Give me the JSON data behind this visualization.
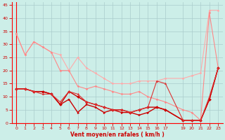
{
  "xlabel": "Vent moyen/en rafales ( km/h )",
  "background_color": "#cceee8",
  "grid_color": "#aacccc",
  "xlim": [
    -0.5,
    23.5
  ],
  "ylim": [
    0,
    46
  ],
  "yticks": [
    0,
    5,
    10,
    15,
    20,
    25,
    30,
    35,
    40,
    45
  ],
  "xticks": [
    0,
    1,
    2,
    3,
    4,
    5,
    6,
    7,
    8,
    9,
    10,
    11,
    12,
    13,
    14,
    15,
    16,
    17,
    19,
    20,
    21,
    22,
    23
  ],
  "series": [
    {
      "x": [
        0,
        1,
        2,
        3,
        4,
        5,
        6,
        7,
        8,
        9,
        10,
        11,
        12,
        13,
        14,
        15,
        16,
        17,
        19,
        20,
        21,
        22,
        23
      ],
      "y": [
        34,
        26,
        31,
        29,
        27,
        26,
        20,
        25,
        21,
        19,
        17,
        15,
        15,
        15,
        16,
        16,
        16,
        17,
        17,
        18,
        19,
        43,
        43
      ],
      "color": "#ffaaaa",
      "lw": 0.8,
      "marker": "D",
      "ms": 1.5
    },
    {
      "x": [
        0,
        1,
        2,
        3,
        4,
        5,
        6,
        7,
        8,
        9,
        10,
        11,
        12,
        13,
        14,
        15,
        16,
        17,
        19,
        20,
        21,
        22,
        23
      ],
      "y": [
        34,
        26,
        31,
        29,
        27,
        20,
        20,
        14,
        13,
        14,
        13,
        12,
        11,
        11,
        12,
        10,
        9,
        8,
        5,
        4,
        1,
        42,
        21
      ],
      "color": "#ff8888",
      "lw": 0.8,
      "marker": "D",
      "ms": 1.5
    },
    {
      "x": [
        0,
        1,
        2,
        3,
        4,
        5,
        6,
        7,
        8,
        9,
        10,
        11,
        12,
        13,
        14,
        15,
        16,
        17,
        19,
        20,
        21,
        22,
        23
      ],
      "y": [
        13,
        13,
        12,
        12,
        11,
        7,
        12,
        10,
        8,
        7,
        6,
        5,
        5,
        4,
        5,
        6,
        6,
        5,
        1,
        1,
        1,
        9,
        21
      ],
      "color": "#cc0000",
      "lw": 1.0,
      "marker": "D",
      "ms": 2.0
    },
    {
      "x": [
        0,
        1,
        2,
        3,
        4,
        5,
        6,
        7,
        8,
        9,
        10,
        11,
        12,
        13,
        14,
        15,
        16,
        17,
        19,
        20,
        21,
        22,
        23
      ],
      "y": [
        13,
        13,
        12,
        12,
        11,
        7,
        9,
        4,
        7,
        6,
        4,
        5,
        4,
        4,
        3,
        4,
        6,
        5,
        1,
        1,
        1,
        9,
        21
      ],
      "color": "#cc0000",
      "lw": 1.0,
      "marker": ">",
      "ms": 2.0
    },
    {
      "x": [
        0,
        1,
        2,
        3,
        4,
        5,
        6,
        7,
        8,
        9,
        10,
        11,
        12,
        13,
        14,
        15,
        16,
        17,
        19,
        20,
        21,
        22,
        23
      ],
      "y": [
        13,
        13,
        12,
        11,
        11,
        8,
        12,
        11,
        8,
        7,
        6,
        5,
        5,
        4,
        5,
        6,
        16,
        15,
        1,
        1,
        1,
        10,
        21
      ],
      "color": "#dd3333",
      "lw": 0.8,
      "marker": "^",
      "ms": 1.8
    }
  ],
  "xlabel_fontsize": 5.5,
  "xlabel_color": "#cc0000",
  "tick_labelsize": 4.5,
  "tick_color": "#cc0000",
  "figsize": [
    3.2,
    2.0
  ],
  "dpi": 100
}
